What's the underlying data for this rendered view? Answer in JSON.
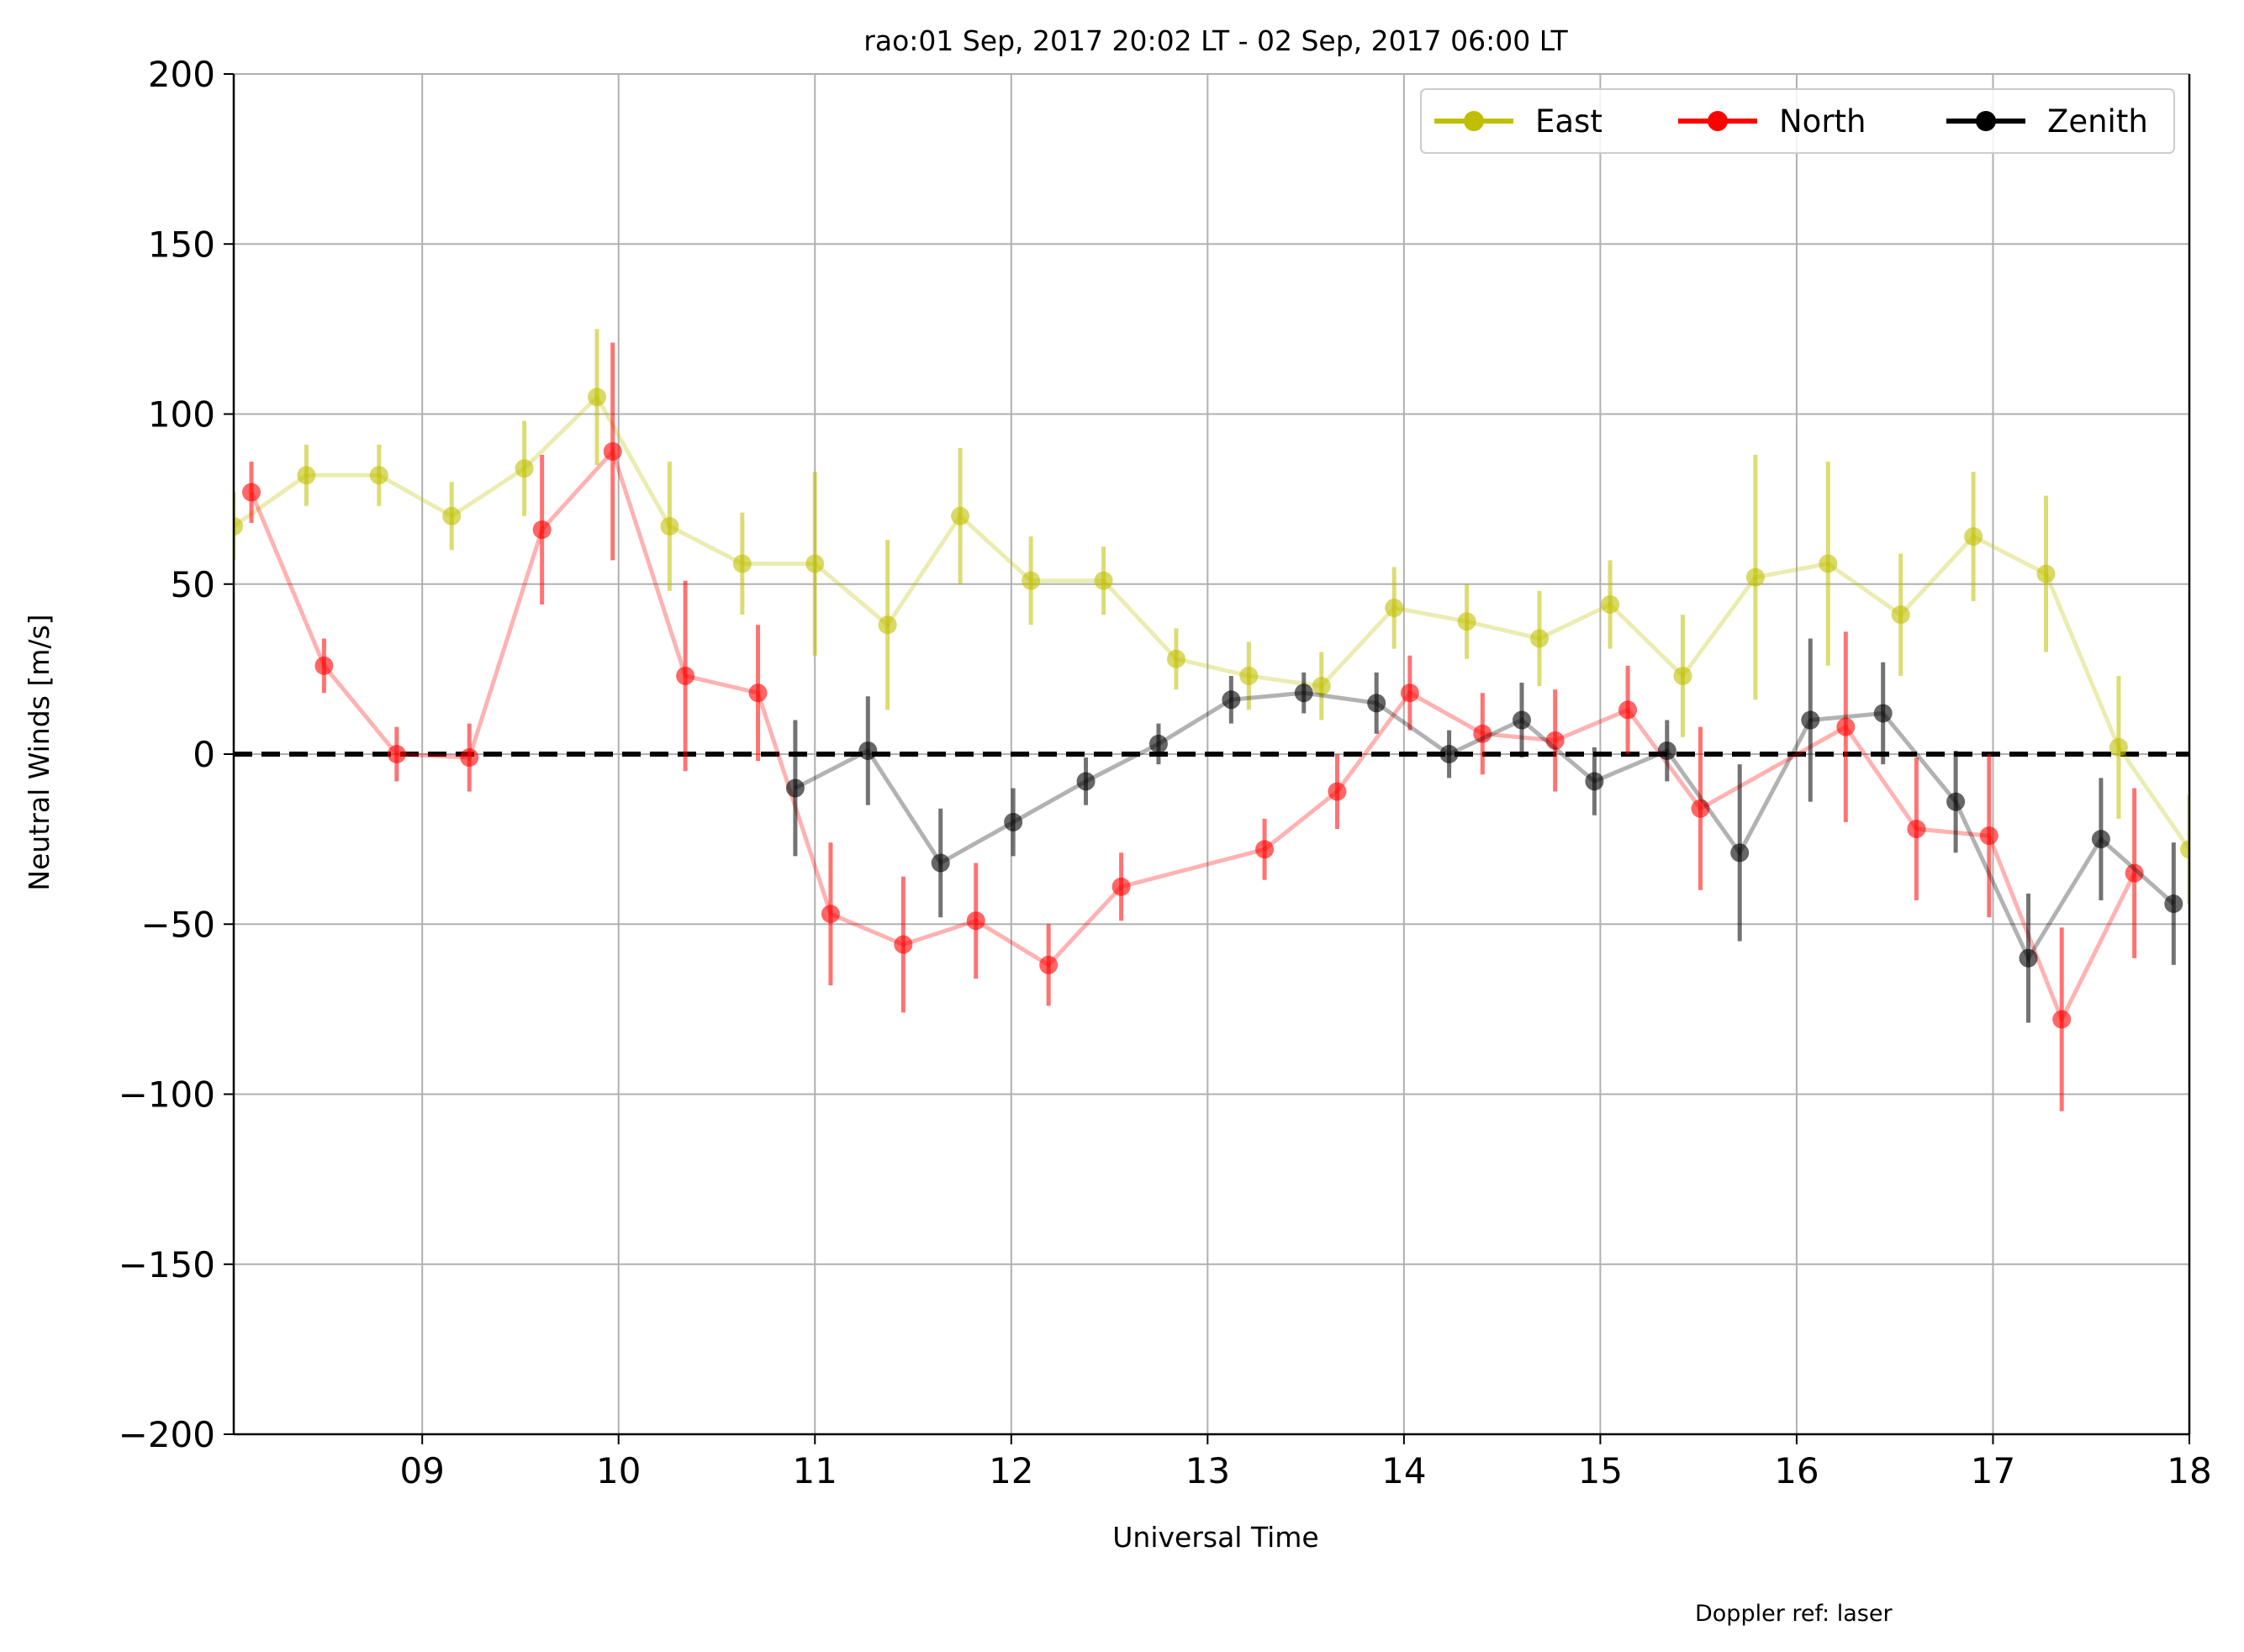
{
  "chart_data": {
    "type": "line",
    "title": "rao:01 Sep, 2017 20:02 LT - 02 Sep, 2017 06:00 LT",
    "xlabel": "Universal Time",
    "ylabel": "Neutral Winds [m/s]",
    "note": "Doppler ref: laser",
    "xlim": [
      8.04,
      18.0
    ],
    "ylim": [
      -200,
      200
    ],
    "x_ticks": [
      9,
      10,
      11,
      12,
      13,
      14,
      15,
      16,
      17,
      18
    ],
    "x_tick_labels": [
      "09",
      "10",
      "11",
      "12",
      "13",
      "14",
      "15",
      "16",
      "17",
      "18"
    ],
    "y_ticks": [
      -200,
      -150,
      -100,
      -50,
      0,
      50,
      100,
      150,
      200
    ],
    "y_tick_labels": [
      "−200",
      "−150",
      "−100",
      "−50",
      "0",
      "50",
      "100",
      "150",
      "200"
    ],
    "grid": true,
    "reference_line": {
      "y": 0,
      "style": "dashed",
      "color": "#000000"
    },
    "legend": {
      "placement": "top-right",
      "columns": 3
    },
    "series": [
      {
        "name": "East",
        "color": "#bfbf00",
        "points": [
          {
            "x": 8.04,
            "y": 67,
            "err": 10
          },
          {
            "x": 8.41,
            "y": 82,
            "err": 9
          },
          {
            "x": 8.78,
            "y": 82,
            "err": 9
          },
          {
            "x": 9.15,
            "y": 70,
            "err": 10
          },
          {
            "x": 9.52,
            "y": 84,
            "err": 14
          },
          {
            "x": 9.89,
            "y": 105,
            "err": 20
          },
          {
            "x": 10.26,
            "y": 67,
            "err": 19
          },
          {
            "x": 10.63,
            "y": 56,
            "err": 15
          },
          {
            "x": 11.0,
            "y": 56,
            "err": 27
          },
          {
            "x": 11.37,
            "y": 38,
            "err": 25
          },
          {
            "x": 11.74,
            "y": 70,
            "err": 20
          },
          {
            "x": 12.1,
            "y": 51,
            "err": 13
          },
          {
            "x": 12.47,
            "y": 51,
            "err": 10
          },
          {
            "x": 12.84,
            "y": 28,
            "err": 9
          },
          {
            "x": 13.21,
            "y": 23,
            "err": 10
          },
          {
            "x": 13.58,
            "y": 20,
            "err": 10
          },
          {
            "x": 13.95,
            "y": 43,
            "err": 12
          },
          {
            "x": 14.32,
            "y": 39,
            "err": 11
          },
          {
            "x": 14.69,
            "y": 34,
            "err": 14
          },
          {
            "x": 15.05,
            "y": 44,
            "err": 13
          },
          {
            "x": 15.42,
            "y": 23,
            "err": 18
          },
          {
            "x": 15.79,
            "y": 52,
            "err": 36
          },
          {
            "x": 16.16,
            "y": 56,
            "err": 30
          },
          {
            "x": 16.53,
            "y": 41,
            "err": 18
          },
          {
            "x": 16.9,
            "y": 64,
            "err": 19
          },
          {
            "x": 17.27,
            "y": 53,
            "err": 23
          },
          {
            "x": 17.64,
            "y": 2,
            "err": 21
          },
          {
            "x": 18.0,
            "y": -28,
            "err": 16
          }
        ]
      },
      {
        "name": "North",
        "color": "#ff0000",
        "points": [
          {
            "x": 8.13,
            "y": 77,
            "err": 9
          },
          {
            "x": 8.5,
            "y": 26,
            "err": 8
          },
          {
            "x": 8.87,
            "y": 0,
            "err": 8
          },
          {
            "x": 9.24,
            "y": -1,
            "err": 10
          },
          {
            "x": 9.61,
            "y": 66,
            "err": 22
          },
          {
            "x": 9.97,
            "y": 89,
            "err": 32
          },
          {
            "x": 10.34,
            "y": 23,
            "err": 28
          },
          {
            "x": 10.71,
            "y": 18,
            "err": 20
          },
          {
            "x": 11.08,
            "y": -47,
            "err": 21
          },
          {
            "x": 11.45,
            "y": -56,
            "err": 20
          },
          {
            "x": 11.82,
            "y": -49,
            "err": 17
          },
          {
            "x": 12.19,
            "y": -62,
            "err": 12
          },
          {
            "x": 12.56,
            "y": -39,
            "err": 10
          },
          {
            "x": 13.29,
            "y": -28,
            "err": 9
          },
          {
            "x": 13.66,
            "y": -11,
            "err": 11
          },
          {
            "x": 14.03,
            "y": 18,
            "err": 11
          },
          {
            "x": 14.4,
            "y": 6,
            "err": 12
          },
          {
            "x": 14.77,
            "y": 4,
            "err": 15
          },
          {
            "x": 15.14,
            "y": 13,
            "err": 13
          },
          {
            "x": 15.51,
            "y": -16,
            "err": 24
          },
          {
            "x": 16.25,
            "y": 8,
            "err": 28
          },
          {
            "x": 16.61,
            "y": -22,
            "err": 21
          },
          {
            "x": 16.98,
            "y": -24,
            "err": 24
          },
          {
            "x": 17.35,
            "y": -78,
            "err": 27
          },
          {
            "x": 17.72,
            "y": -35,
            "err": 25
          }
        ]
      },
      {
        "name": "Zenith",
        "color": "#000000",
        "points": [
          {
            "x": 10.9,
            "y": -10,
            "err": 20
          },
          {
            "x": 11.27,
            "y": 1,
            "err": 16
          },
          {
            "x": 11.64,
            "y": -32,
            "err": 16
          },
          {
            "x": 12.01,
            "y": -20,
            "err": 10
          },
          {
            "x": 12.38,
            "y": -8,
            "err": 7
          },
          {
            "x": 12.75,
            "y": 3,
            "err": 6
          },
          {
            "x": 13.12,
            "y": 16,
            "err": 7
          },
          {
            "x": 13.49,
            "y": 18,
            "err": 6
          },
          {
            "x": 13.86,
            "y": 15,
            "err": 9
          },
          {
            "x": 14.23,
            "y": 0,
            "err": 7
          },
          {
            "x": 14.6,
            "y": 10,
            "err": 11
          },
          {
            "x": 14.97,
            "y": -8,
            "err": 10
          },
          {
            "x": 15.34,
            "y": 1,
            "err": 9
          },
          {
            "x": 15.71,
            "y": -29,
            "err": 26
          },
          {
            "x": 16.07,
            "y": 10,
            "err": 24
          },
          {
            "x": 16.44,
            "y": 12,
            "err": 15
          },
          {
            "x": 16.81,
            "y": -14,
            "err": 15
          },
          {
            "x": 17.18,
            "y": -60,
            "err": 19
          },
          {
            "x": 17.55,
            "y": -25,
            "err": 18
          },
          {
            "x": 17.92,
            "y": -44,
            "err": 18
          }
        ]
      }
    ]
  }
}
